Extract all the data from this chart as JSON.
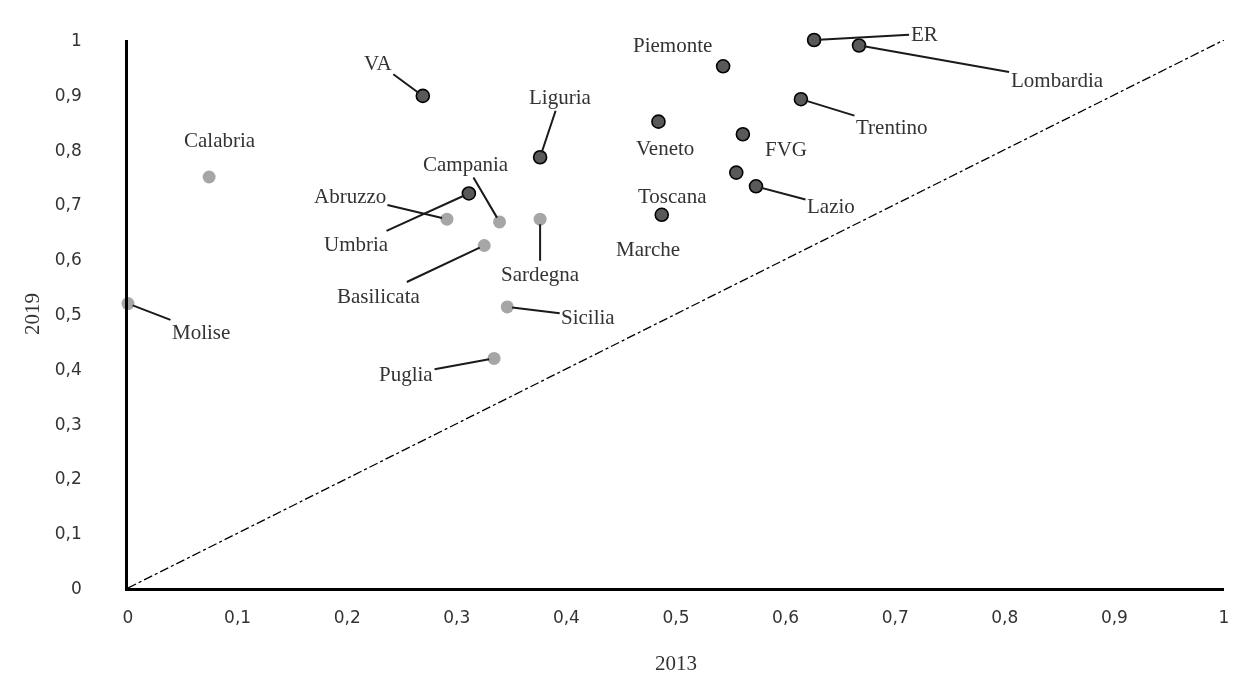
{
  "chart_data": {
    "type": "scatter",
    "xlabel": "2013",
    "ylabel": "2019",
    "xlim": [
      0,
      1
    ],
    "ylim": [
      0,
      1
    ],
    "xticks": [
      0,
      {
        "value": 0.1,
        "label": "0,1"
      },
      {
        "value": 0.2,
        "label": "0,2"
      },
      {
        "value": 0.3,
        "label": "0,3"
      },
      {
        "value": 0.4,
        "label": "0,4"
      },
      {
        "value": 0.5,
        "label": "0,5"
      },
      {
        "value": 0.6,
        "label": "0,6"
      },
      {
        "value": 0.7,
        "label": "0,7"
      },
      {
        "value": 0.8,
        "label": "0,8"
      },
      {
        "value": 0.9,
        "label": "0,9"
      },
      1
    ],
    "yticks": [
      0,
      {
        "value": 0.1,
        "label": "0,1"
      },
      {
        "value": 0.2,
        "label": "0,2"
      },
      {
        "value": 0.3,
        "label": "0,3"
      },
      {
        "value": 0.4,
        "label": "0,4"
      },
      {
        "value": 0.5,
        "label": "0,5"
      },
      {
        "value": 0.6,
        "label": "0,6"
      },
      {
        "value": 0.7,
        "label": "0,7"
      },
      {
        "value": 0.8,
        "label": "0,8"
      },
      {
        "value": 0.9,
        "label": "0,9"
      },
      1
    ],
    "marker": "circle",
    "series": [
      {
        "color": "#595959",
        "x": [
          0.269,
          0.376,
          0.543,
          0.626,
          0.667,
          0.614,
          0.484,
          0.561,
          0.555,
          0.573,
          0.487,
          0.311
        ],
        "values": [
          0.898,
          0.786,
          0.952,
          1.0,
          0.99,
          0.892,
          0.851,
          0.828,
          0.758,
          0.733,
          0.681,
          0.72
        ]
      },
      {
        "color": "#a6a6a6",
        "x": [
          0.291,
          0.339,
          0.376,
          0.325,
          0.346,
          0.334,
          0.0,
          0.074
        ],
        "values": [
          0.673,
          0.668,
          0.673,
          0.625,
          0.513,
          0.419,
          0.519,
          0.75
        ]
      },
      {
        "type": "line",
        "color": "#000000",
        "line_style": "dashdot",
        "marker": "none",
        "x": [
          0,
          1
        ],
        "values": [
          0,
          1
        ]
      }
    ],
    "annotations": [
      {
        "text": "VA",
        "x": 0.269,
        "y": 0.898
      },
      {
        "text": "Liguria",
        "x": 0.376,
        "y": 0.786
      },
      {
        "text": "Piemonte",
        "x": 0.543,
        "y": 0.952
      },
      {
        "text": "ER",
        "x": 0.626,
        "y": 1.0
      },
      {
        "text": "Lombardia",
        "x": 0.667,
        "y": 0.99
      },
      {
        "text": "Trentino",
        "x": 0.614,
        "y": 0.892
      },
      {
        "text": "Veneto",
        "x": 0.484,
        "y": 0.851
      },
      {
        "text": "FVG",
        "x": 0.561,
        "y": 0.828
      },
      {
        "text": "Toscana",
        "x": 0.555,
        "y": 0.758
      },
      {
        "text": "Lazio",
        "x": 0.573,
        "y": 0.733
      },
      {
        "text": "Marche",
        "x": 0.487,
        "y": 0.681
      },
      {
        "text": "Umbria",
        "x": 0.311,
        "y": 0.72
      },
      {
        "text": "Abruzzo",
        "x": 0.291,
        "y": 0.673
      },
      {
        "text": "Campania",
        "x": 0.339,
        "y": 0.668
      },
      {
        "text": "Sardegna",
        "x": 0.376,
        "y": 0.673
      },
      {
        "text": "Basilicata",
        "x": 0.325,
        "y": 0.625
      },
      {
        "text": "Sicilia",
        "x": 0.346,
        "y": 0.513
      },
      {
        "text": "Puglia",
        "x": 0.334,
        "y": 0.419
      },
      {
        "text": "Molise",
        "x": 0.0,
        "y": 0.519
      },
      {
        "text": "Calabria",
        "x": 0.074,
        "y": 0.75
      }
    ]
  }
}
